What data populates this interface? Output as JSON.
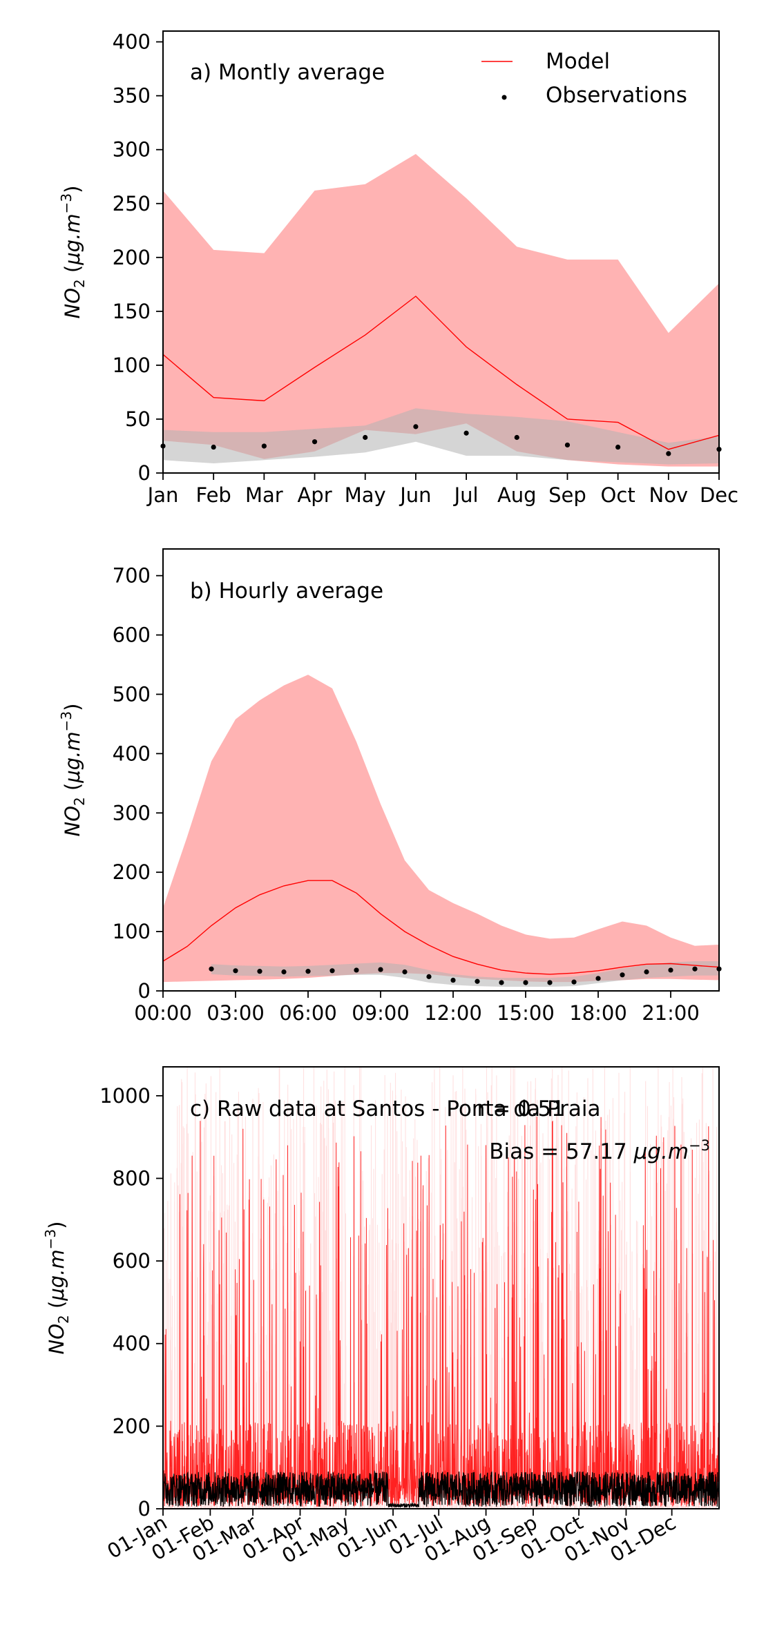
{
  "chart_data": [
    {
      "type": "line",
      "panel_label": "a) Montly average",
      "ylabel": {
        "base": "NO",
        "sub": "2",
        "unit_open": " (",
        "unit_main": "μg.m",
        "unit_sup": "−3",
        "unit_close": ")"
      },
      "categories": [
        "Jan",
        "Feb",
        "Mar",
        "Apr",
        "May",
        "Jun",
        "Jul",
        "Aug",
        "Sep",
        "Oct",
        "Nov",
        "Dec"
      ],
      "yticks": [
        0,
        50,
        100,
        150,
        200,
        250,
        300,
        350,
        400
      ],
      "ylim": [
        0,
        410
      ],
      "legend": {
        "placement": "top-right",
        "entries": [
          "Model",
          "Observations"
        ]
      },
      "model": [
        110,
        70,
        67,
        98,
        128,
        164,
        117,
        82,
        50,
        47,
        22,
        35
      ],
      "model_upper": [
        262,
        207,
        204,
        262,
        268,
        296,
        255,
        210,
        198,
        198,
        130,
        176
      ],
      "model_lower": [
        30,
        26,
        13,
        20,
        40,
        36,
        46,
        20,
        12,
        8,
        6,
        6
      ],
      "obs": [
        25,
        24,
        25,
        29,
        33,
        43,
        37,
        33,
        26,
        24,
        18,
        22
      ],
      "obs_upper": [
        40,
        38,
        38,
        41,
        44,
        60,
        55,
        52,
        48,
        38,
        28,
        34
      ],
      "obs_lower": [
        12,
        9,
        12,
        15,
        19,
        29,
        16,
        16,
        12,
        10,
        8,
        9
      ],
      "colors": {
        "model": "#ff0000",
        "model_band": "#ffb3b3",
        "obs": "#000000",
        "obs_band": "#b3b3b3"
      }
    },
    {
      "type": "line",
      "panel_label": "b) Hourly average",
      "ylabel": {
        "base": "NO",
        "sub": "2",
        "unit_open": " (",
        "unit_main": "μg.m",
        "unit_sup": "−3",
        "unit_close": ")"
      },
      "xticklabels": [
        "00:00",
        "03:00",
        "06:00",
        "09:00",
        "12:00",
        "15:00",
        "18:00",
        "21:00"
      ],
      "xtick_hours": [
        0,
        3,
        6,
        9,
        12,
        15,
        18,
        21
      ],
      "xlim": [
        0,
        23
      ],
      "yticks": [
        0,
        100,
        200,
        300,
        400,
        500,
        600,
        700
      ],
      "ylim": [
        0,
        745
      ],
      "model_hours": [
        0,
        1,
        2,
        3,
        4,
        5,
        6,
        7,
        8,
        9,
        10,
        11,
        12,
        13,
        14,
        15,
        16,
        17,
        18,
        19,
        20,
        21,
        22,
        23
      ],
      "model": [
        50,
        75,
        110,
        140,
        162,
        177,
        186,
        186,
        165,
        130,
        100,
        77,
        58,
        45,
        35,
        30,
        28,
        30,
        34,
        40,
        45,
        46,
        43,
        40
      ],
      "model_upper": [
        140,
        260,
        387,
        458,
        490,
        515,
        533,
        510,
        420,
        315,
        220,
        170,
        148,
        130,
        110,
        95,
        88,
        90,
        104,
        117,
        110,
        90,
        76,
        78
      ],
      "model_lower": [
        15,
        16,
        17,
        18,
        19,
        20,
        22,
        25,
        28,
        30,
        30,
        28,
        24,
        20,
        18,
        16,
        15,
        15,
        17,
        18,
        20,
        20,
        19,
        18
      ],
      "obs_hours": [
        2,
        3,
        4,
        5,
        6,
        7,
        8,
        9,
        10,
        11,
        12,
        13,
        14,
        15,
        16,
        17,
        18,
        19,
        20,
        21,
        22,
        23
      ],
      "obs": [
        37,
        34,
        33,
        32,
        33,
        34,
        35,
        36,
        32,
        24,
        18,
        16,
        14,
        14,
        14,
        15,
        21,
        27,
        32,
        35,
        37,
        37
      ],
      "obs_upper": [
        45,
        43,
        42,
        41,
        42,
        44,
        46,
        48,
        44,
        35,
        28,
        24,
        22,
        22,
        22,
        24,
        30,
        38,
        44,
        48,
        50,
        50
      ],
      "obs_lower": [
        28,
        26,
        25,
        24,
        25,
        26,
        27,
        27,
        22,
        14,
        10,
        8,
        7,
        7,
        7,
        8,
        13,
        18,
        22,
        24,
        26,
        26
      ],
      "colors": {
        "model": "#ff0000",
        "model_band": "#ffb3b3",
        "obs": "#000000",
        "obs_band": "#b3b3b3"
      }
    },
    {
      "type": "line",
      "panel_label": "c) Raw data at Santos - Ponta da Praia",
      "stat_r": "r = 0.51",
      "stat_bias": {
        "prefix": "Bias = 57.17 ",
        "unit_main": "μg.m",
        "unit_sup": "−3"
      },
      "ylabel": {
        "base": "NO",
        "sub": "2",
        "unit_open": " (",
        "unit_main": "μg.m",
        "unit_sup": "−3",
        "unit_close": ")"
      },
      "xticklabels": [
        "01-Jan",
        "01-Feb",
        "01-Mar",
        "01-Apr",
        "01-May",
        "01-Jun",
        "01-Jul",
        "01-Aug",
        "01-Sep",
        "01-Oct",
        "01-Nov",
        "01-Dec"
      ],
      "xtick_days": [
        0,
        31,
        59,
        90,
        120,
        151,
        181,
        212,
        243,
        273,
        304,
        334
      ],
      "xlim": [
        0,
        365
      ],
      "yticks": [
        0,
        200,
        400,
        600,
        800,
        1000
      ],
      "ylim": [
        0,
        1070
      ],
      "colors": {
        "model": "#ff0000",
        "model_faint": "#ffdede",
        "obs": "#000000"
      }
    }
  ]
}
